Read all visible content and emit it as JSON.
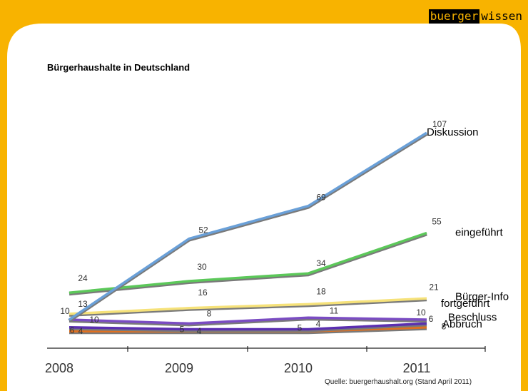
{
  "brand": {
    "part1": "buerger",
    "part2": "wissen"
  },
  "source": "Quelle: buergerhaushalt.org (Stand April 2011)",
  "colors": {
    "frame": "#f8b300",
    "panel": "#ffffff",
    "text": "#222222"
  },
  "chart_data": {
    "type": "line",
    "title": "Bürgerhaushalte in Deutschland",
    "xlabel": "",
    "ylabel": "",
    "categories": [
      "2008",
      "2009",
      "2010",
      "2011"
    ],
    "ylim": [
      0,
      120
    ],
    "grid": false,
    "legend": "right, labels at line ends",
    "series": [
      {
        "name": "Diskussion",
        "values": [
          10,
          52,
          69,
          107
        ],
        "labels": [
          "10",
          "52",
          "69",
          "107"
        ],
        "color": "#6aa0d8"
      },
      {
        "name": "eingeführt",
        "values": [
          24,
          30,
          34,
          55
        ],
        "labels": [
          "24",
          "30",
          "34",
          "55"
        ],
        "color": "#5cc85a"
      },
      {
        "name": "Bürger-Info",
        "values": [
          13,
          16,
          18,
          21
        ],
        "labels": [
          "13",
          "16",
          "18",
          "21"
        ],
        "color": "#f6e27a"
      },
      {
        "name": "fortgeführt",
        "values": [
          10,
          8,
          11,
          10
        ],
        "labels": [
          "10",
          "8",
          "11",
          "10"
        ],
        "color": "#7a4cc2"
      },
      {
        "name": "Beschluss",
        "values": [
          6,
          5,
          5,
          8
        ],
        "labels": [
          "6",
          "5",
          "5",
          "8"
        ],
        "color": "#5a2fb0"
      },
      {
        "name": "Abbruch",
        "values": [
          4,
          4,
          4,
          6
        ],
        "labels": [
          "4",
          "4",
          "4",
          "6"
        ],
        "color": "#e07020"
      }
    ]
  }
}
